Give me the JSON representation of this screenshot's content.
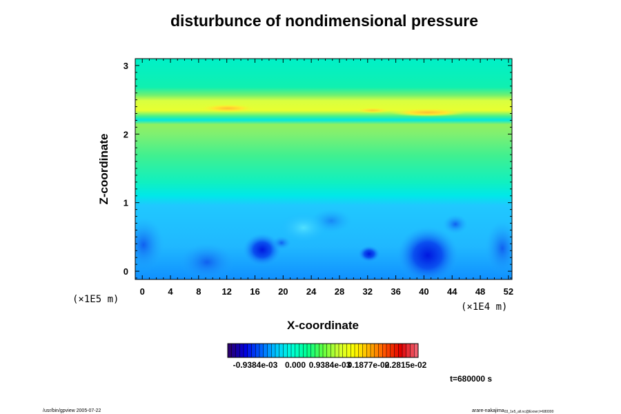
{
  "chart_data": {
    "type": "heatmap",
    "title": "disturbunce of nondimensional pressure",
    "xlabel": "X-coordinate",
    "ylabel": "Z-coordinate",
    "x_scale_label": "(×1E4 m)",
    "y_scale_label": "(×1E5 m)",
    "x_ticks": [
      "0",
      "4",
      "8",
      "12",
      "16",
      "20",
      "24",
      "28",
      "32",
      "36",
      "40",
      "44",
      "48",
      "52"
    ],
    "y_ticks": [
      "0",
      "1",
      "2",
      "3"
    ],
    "xlim": [
      -1,
      52.5
    ],
    "ylim": [
      -0.12,
      3.1
    ],
    "colorbar_labels": [
      "-0.9384e-03",
      "0.000",
      "0.9384e-03",
      "0.1877e-02",
      "0.2815e-02"
    ],
    "colorbar_colors": [
      "#2a0070",
      "#0000e0",
      "#0060ff",
      "#00c8ff",
      "#00ffd8",
      "#00ff90",
      "#60ff40",
      "#d0ff30",
      "#ffff00",
      "#ffb000",
      "#ff5000",
      "#e00000",
      "#f06070"
    ],
    "field_colors": {
      "low": "#0a50f0",
      "mid_low": "#28c0ff",
      "mid": "#00f0d0",
      "mid_high": "#40f090",
      "high": "#c8ff40",
      "peak": "#ffd030"
    },
    "time_label": "t=680000 s",
    "footer_left": "/usr/bin/gpview 2005-07-22",
    "footer_right": "arare-nakajima",
    "footer_right_small": "03_1e5_all.nc@Exner;t=680000"
  }
}
